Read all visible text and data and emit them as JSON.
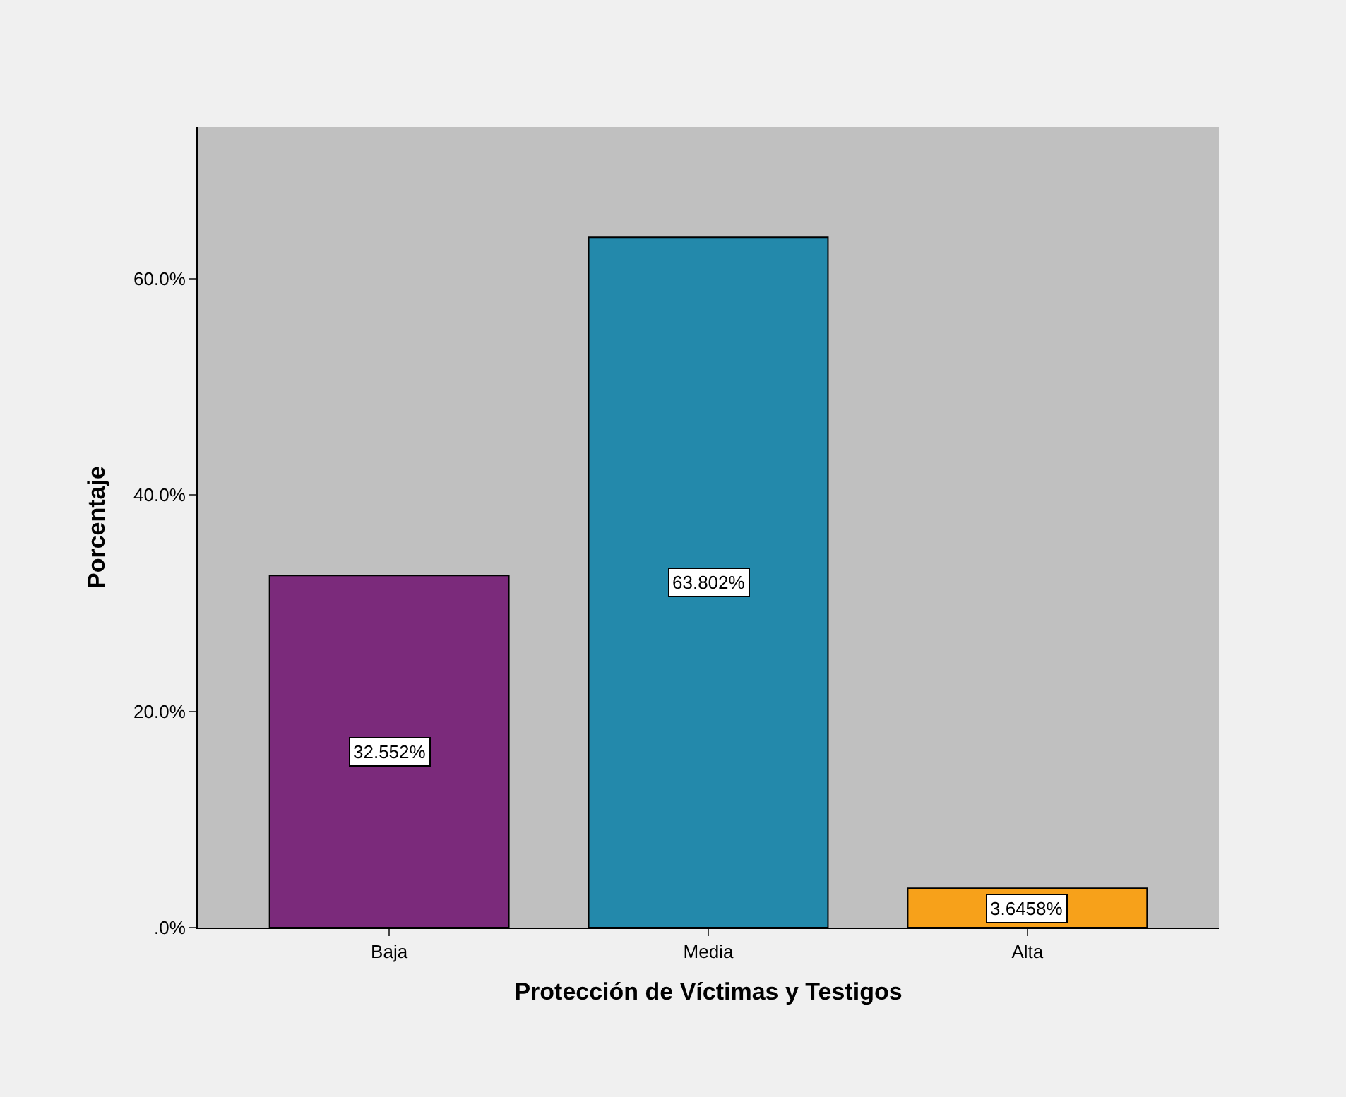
{
  "chart_data": {
    "type": "bar",
    "xlabel": "Protección de Víctimas y Testigos",
    "ylabel": "Porcentaje",
    "categories": [
      "Baja",
      "Media",
      "Alta"
    ],
    "values": [
      32.552,
      63.802,
      3.6458
    ],
    "colors": [
      "#7b2a7b",
      "#2389ab",
      "#f7a11a"
    ],
    "value_labels": [
      "32.552%",
      "63.802%",
      "3.6458%"
    ],
    "ylim": [
      0,
      74
    ],
    "yticks": [
      {
        "value": 0,
        "label": ".0%"
      },
      {
        "value": 20,
        "label": "20.0%"
      },
      {
        "value": 40,
        "label": "40.0%"
      },
      {
        "value": 60,
        "label": "60.0%"
      }
    ],
    "grid": false
  }
}
